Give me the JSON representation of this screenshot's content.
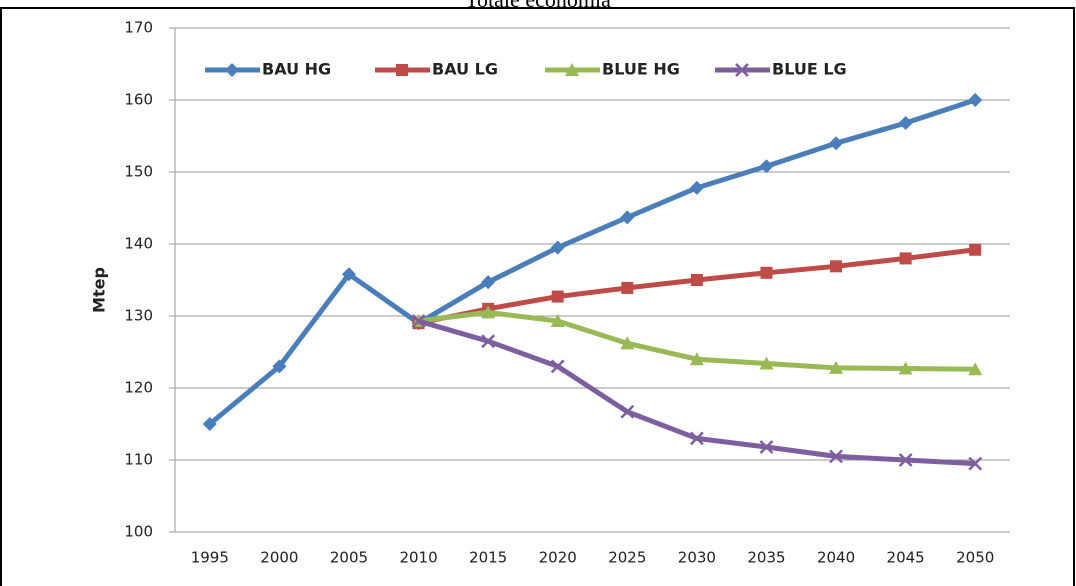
{
  "chart_data": {
    "type": "line",
    "title": "Totale economia",
    "y_label": "Mtep",
    "categories": [
      "1995",
      "2000",
      "2005",
      "2010",
      "2015",
      "2020",
      "2025",
      "2030",
      "2035",
      "2040",
      "2045",
      "2050"
    ],
    "series": [
      {
        "name": "BAU HG",
        "color": "#4a7ebb",
        "marker": "diamond",
        "values": [
          115,
          123,
          135.8,
          129,
          134.7,
          139.5,
          143.7,
          147.8,
          150.8,
          154,
          156.8,
          160
        ]
      },
      {
        "name": "BAU LG",
        "color": "#be4b48",
        "marker": "square",
        "values": [
          null,
          null,
          null,
          129,
          131,
          132.7,
          133.9,
          135,
          136,
          136.9,
          138,
          139.2
        ]
      },
      {
        "name": "BLUE HG",
        "color": "#98b954",
        "marker": "triangle",
        "values": [
          null,
          null,
          null,
          129.3,
          130.5,
          129.3,
          126.2,
          124,
          123.4,
          122.8,
          122.7,
          122.6
        ]
      },
      {
        "name": "BLUE LG",
        "color": "#7d5fa0",
        "marker": "x",
        "values": [
          null,
          null,
          null,
          129.3,
          126.5,
          123,
          116.7,
          113,
          111.8,
          110.5,
          110,
          109.5
        ]
      }
    ],
    "ylim": [
      100,
      170
    ],
    "yticks": [
      100,
      110,
      120,
      130,
      140,
      150,
      160,
      170
    ],
    "grid": true,
    "legend": "top"
  }
}
